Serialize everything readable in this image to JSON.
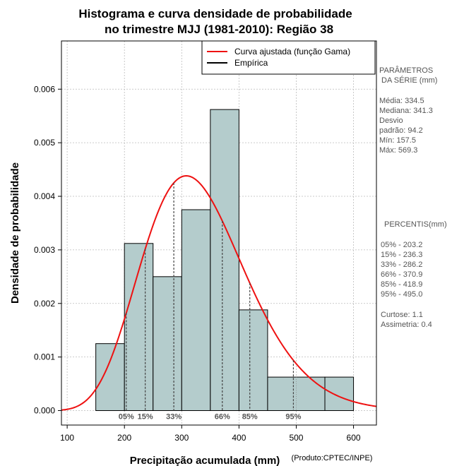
{
  "chart_data": {
    "type": "histogram",
    "title_line1": "Histograma e curva densidade de probabilidade",
    "title_line2": "no trimestre MJJ (1981-2010): Região 38",
    "xlabel": "Precipitação acumulada (mm)",
    "ylabel": "Densidade de probabilidade",
    "credit": "(Produto:CPTEC/INPE)",
    "xlim": [
      90,
      640
    ],
    "ylim": [
      -0.00027,
      0.0069
    ],
    "xticks": [
      100,
      200,
      300,
      400,
      500,
      600
    ],
    "yticks": [
      0.0,
      0.001,
      0.002,
      0.003,
      0.004,
      0.005,
      0.006
    ],
    "ytick_labels": [
      "0.000",
      "0.001",
      "0.002",
      "0.003",
      "0.004",
      "0.005",
      "0.006"
    ],
    "grid": true,
    "bar_color": "#b4cccc",
    "curve_color": "#ee1111",
    "bins": [
      {
        "start": 150,
        "end": 200,
        "density": 0.00125
      },
      {
        "start": 200,
        "end": 250,
        "density": 0.00312
      },
      {
        "start": 250,
        "end": 300,
        "density": 0.0025
      },
      {
        "start": 300,
        "end": 350,
        "density": 0.00375
      },
      {
        "start": 350,
        "end": 400,
        "density": 0.00562
      },
      {
        "start": 400,
        "end": 450,
        "density": 0.00188
      },
      {
        "start": 450,
        "end": 550,
        "density": 0.000625
      },
      {
        "start": 550,
        "end": 600,
        "density": 0.000625
      }
    ],
    "gamma_fit": {
      "mean": 334.5,
      "sd": 94.2
    },
    "legend": {
      "placement": "top-right",
      "entries": [
        {
          "label": "Curva ajustada (função Gama)",
          "color": "#ee1111"
        },
        {
          "label": "Empírica",
          "color": "#000000"
        }
      ]
    },
    "percentile_markers": [
      {
        "label": "05%",
        "value": 203.2
      },
      {
        "label": "15%",
        "value": 236.3
      },
      {
        "label": "33%",
        "value": 286.2
      },
      {
        "label": "66%",
        "value": 370.9
      },
      {
        "label": "85%",
        "value": 418.9
      },
      {
        "label": "95%",
        "value": 495.0
      }
    ]
  },
  "side_panel": {
    "params_title_1": "PARÂMETROS",
    "params_title_2": "DA SÉRIE (mm)",
    "params": [
      "Média:  334.5",
      "Mediana:  341.3",
      "Desvio",
      "padrão:  94.2",
      "Mín:  157.5",
      "Máx:  569.3"
    ],
    "percentis_title": "PERCENTIS(mm)",
    "percentis": [
      "05% -  203.2",
      "15% -  236.3",
      "33% -  286.2",
      "66% -  370.9",
      "85% -  418.9",
      "95% -  495.0"
    ],
    "curtose": "Curtose:  1.1",
    "assimetria": "Assimetria:  0.4"
  }
}
